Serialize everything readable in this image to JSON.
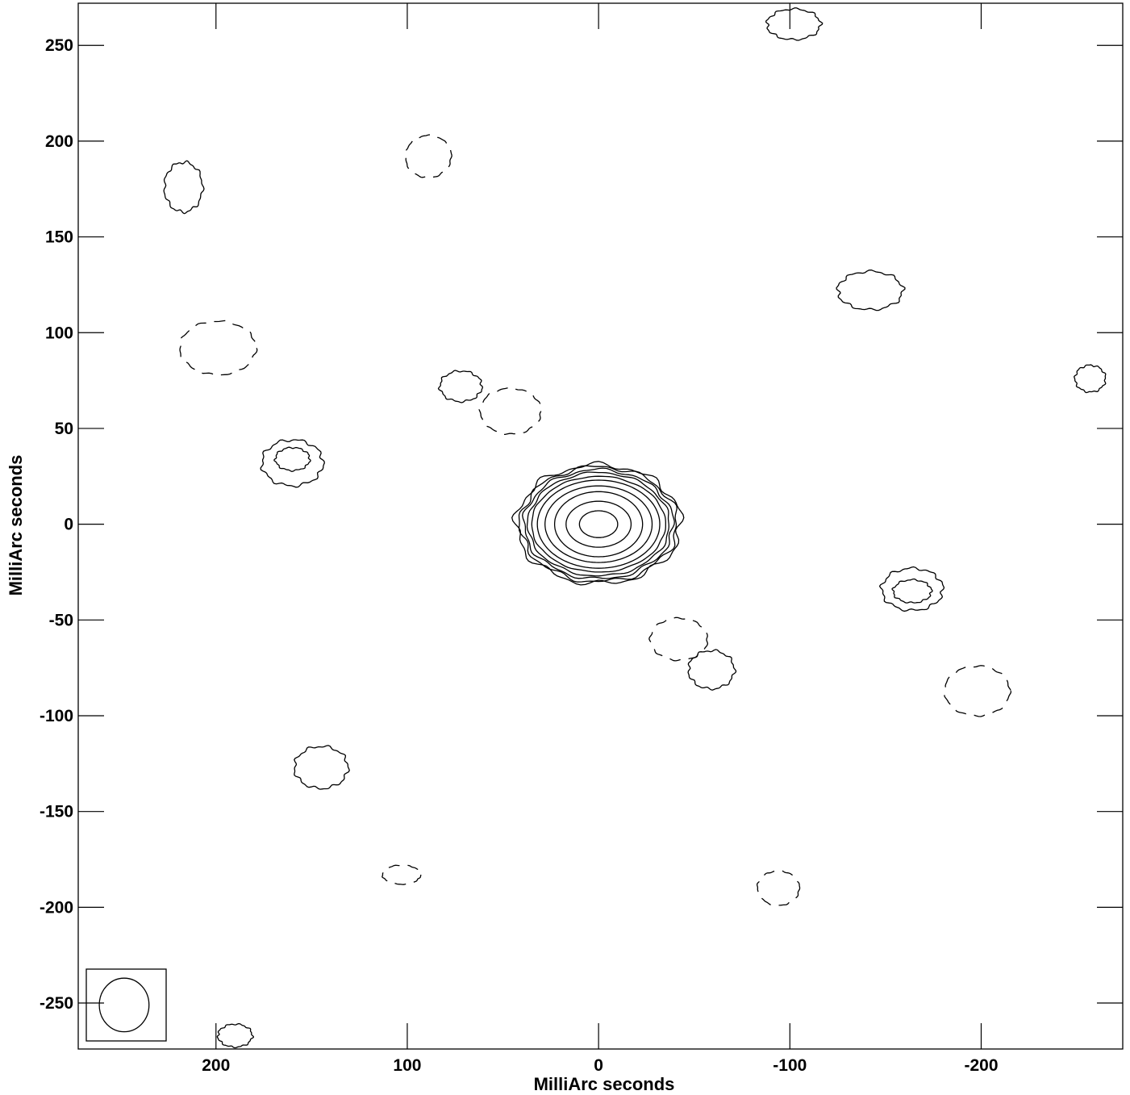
{
  "chart_data": {
    "type": "contour",
    "xlabel": "MilliArc seconds",
    "ylabel": "MilliArc seconds",
    "xlim": [
      272,
      -274
    ],
    "ylim": [
      -274,
      272
    ],
    "x_ticks": [
      200,
      100,
      0,
      -100,
      -200
    ],
    "x_tick_labels": [
      "200",
      "100",
      "0",
      "-100",
      "-200"
    ],
    "y_ticks": [
      250,
      200,
      150,
      100,
      50,
      0,
      -50,
      -100,
      -150,
      -200,
      -250
    ],
    "y_tick_labels": [
      "250",
      "200",
      "150",
      "100",
      "50",
      "0",
      "-50",
      "-100",
      "-150",
      "-200",
      "-250"
    ],
    "central_source": {
      "center": [
        0,
        0
      ],
      "contour_semi_axes": [
        [
          10,
          7
        ],
        [
          17,
          12
        ],
        [
          23,
          17
        ],
        [
          28,
          20
        ],
        [
          32,
          23
        ],
        [
          35,
          25
        ],
        [
          37,
          27
        ],
        [
          39,
          28.5
        ],
        [
          41,
          30
        ],
        [
          43,
          31
        ]
      ]
    },
    "positive_blobs": [
      {
        "center": [
          217,
          176
        ],
        "semi_axes": [
          10,
          13
        ]
      },
      {
        "center": [
          160,
          34
        ],
        "semi_axes": [
          9,
          6
        ]
      },
      {
        "center": [
          160,
          32
        ],
        "semi_axes": [
          16,
          12
        ]
      },
      {
        "center": [
          72,
          72
        ],
        "semi_axes": [
          11,
          8
        ]
      },
      {
        "center": [
          -142,
          122
        ],
        "semi_axes": [
          17,
          10
        ]
      },
      {
        "center": [
          -257,
          76
        ],
        "semi_axes": [
          8,
          7
        ]
      },
      {
        "center": [
          -59,
          -76
        ],
        "semi_axes": [
          12,
          10
        ]
      },
      {
        "center": [
          -164,
          -35
        ],
        "semi_axes": [
          10,
          6
        ]
      },
      {
        "center": [
          -164,
          -34
        ],
        "semi_axes": [
          16,
          11
        ]
      },
      {
        "center": [
          145,
          -127
        ],
        "semi_axes": [
          14,
          11
        ]
      },
      {
        "center": [
          -102,
          261
        ],
        "semi_axes": [
          14,
          8
        ]
      },
      {
        "center": [
          190,
          -267
        ],
        "semi_axes": [
          9,
          6
        ]
      }
    ],
    "negative_rings_dashed": [
      {
        "center": [
          199,
          92
        ],
        "semi_axes": [
          20,
          14
        ]
      },
      {
        "center": [
          89,
          192
        ],
        "semi_axes": [
          12,
          11
        ]
      },
      {
        "center": [
          46,
          59
        ],
        "semi_axes": [
          16,
          12
        ]
      },
      {
        "center": [
          -42,
          -60
        ],
        "semi_axes": [
          15,
          11
        ]
      },
      {
        "center": [
          -198,
          -87
        ],
        "semi_axes": [
          17,
          13
        ]
      },
      {
        "center": [
          -94,
          -190
        ],
        "semi_axes": [
          11,
          9
        ]
      },
      {
        "center": [
          103,
          -183
        ],
        "semi_axes": [
          10,
          5
        ]
      }
    ],
    "beam": {
      "center": [
        248,
        -251
      ],
      "semi_axes": [
        13,
        14
      ]
    }
  }
}
